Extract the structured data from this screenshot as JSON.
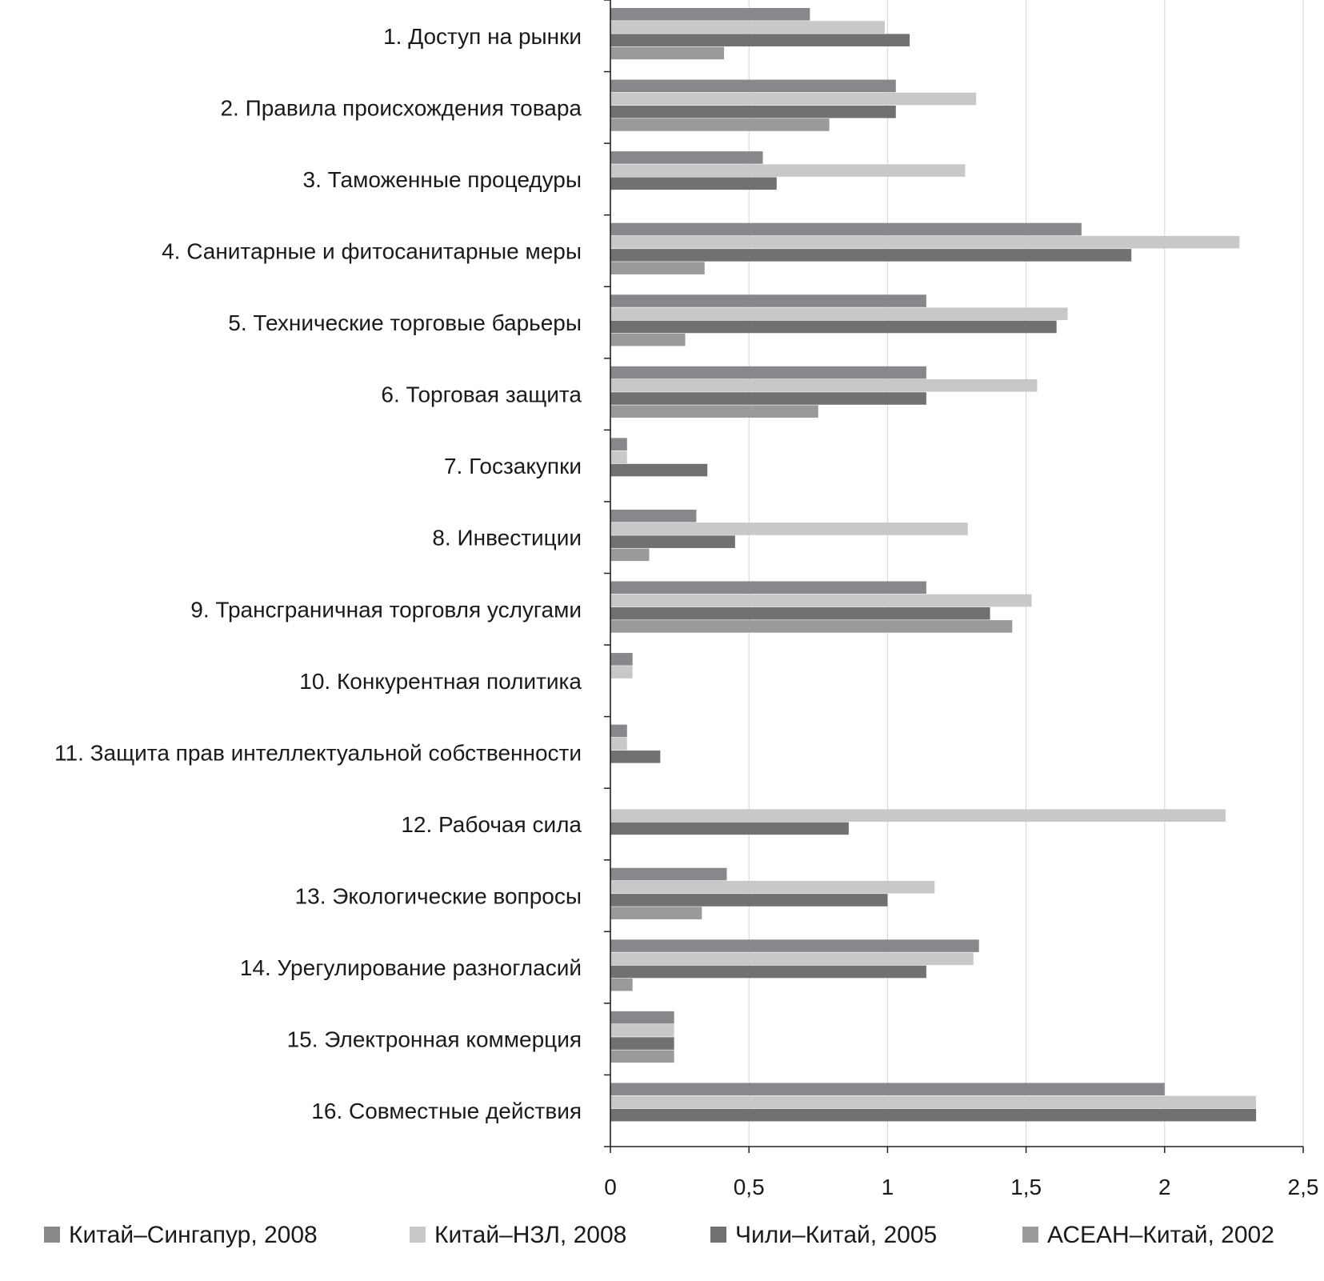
{
  "chart_data": {
    "type": "bar",
    "orientation": "horizontal",
    "categories": [
      "1. Доступ на рынки",
      "2. Правила происхождения товара",
      "3. Таможенные процедуры",
      "4. Санитарные и фитосанитарные меры",
      "5. Технические торговые барьеры",
      "6. Торговая защита",
      "7. Госзакупки",
      "8. Инвестиции",
      "9. Трансграничная торговля услугами",
      "10. Конкурентная политика",
      "11. Защита прав интеллектуальной собственности",
      "12. Рабочая сила",
      "13. Экологические вопросы",
      "14. Урегулирование разногласий",
      "15. Электронная коммерция",
      "16. Совместные действия"
    ],
    "series": [
      {
        "name": "Китай–Сингапур, 2008",
        "color": "#88888c",
        "values": [
          0.72,
          1.03,
          0.55,
          1.7,
          1.14,
          1.14,
          0.06,
          0.31,
          1.14,
          0.08,
          0.06,
          0,
          0.42,
          1.33,
          0.23,
          2.0
        ]
      },
      {
        "name": "Китай–НЗЛ, 2008",
        "color": "#c8c8ca",
        "values": [
          0.99,
          1.32,
          1.28,
          2.27,
          1.65,
          1.54,
          0.06,
          1.29,
          1.52,
          0.08,
          0.06,
          2.22,
          1.17,
          1.31,
          0.23,
          2.33
        ]
      },
      {
        "name": "Чили–Китай, 2005",
        "color": "#717174",
        "values": [
          1.08,
          1.03,
          0.6,
          1.88,
          1.61,
          1.14,
          0.35,
          0.45,
          1.37,
          0,
          0.18,
          0.86,
          1.0,
          1.14,
          0.23,
          2.33
        ]
      },
      {
        "name": "АСЕАН–Китай, 2002",
        "color": "#9a9a9c",
        "values": [
          0.41,
          0.79,
          0,
          0.34,
          0.27,
          0.75,
          0,
          0.14,
          1.45,
          0,
          0,
          0,
          0.33,
          0.08,
          0.23,
          0
        ]
      }
    ],
    "x_ticks": [
      "0",
      "0,5",
      "1",
      "1,5",
      "2",
      "2,5"
    ],
    "xlim": [
      0,
      2.5
    ],
    "grid": "vertical",
    "legend": "bottom"
  }
}
